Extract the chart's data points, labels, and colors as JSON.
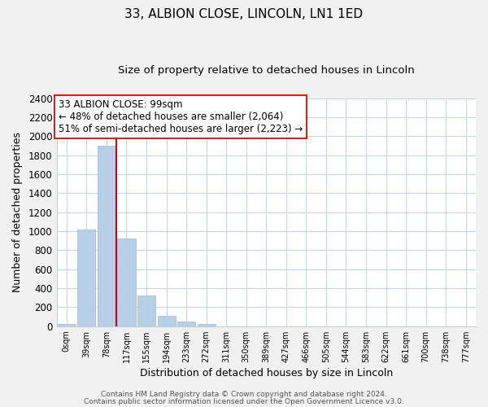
{
  "title": "33, ALBION CLOSE, LINCOLN, LN1 1ED",
  "subtitle": "Size of property relative to detached houses in Lincoln",
  "xlabel": "Distribution of detached houses by size in Lincoln",
  "ylabel": "Number of detached properties",
  "bar_labels": [
    "0sqm",
    "39sqm",
    "78sqm",
    "117sqm",
    "155sqm",
    "194sqm",
    "233sqm",
    "272sqm",
    "311sqm",
    "350sqm",
    "389sqm",
    "427sqm",
    "466sqm",
    "505sqm",
    "544sqm",
    "583sqm",
    "622sqm",
    "661sqm",
    "700sqm",
    "738sqm",
    "777sqm"
  ],
  "bar_values": [
    20,
    1020,
    1900,
    920,
    320,
    105,
    50,
    20,
    0,
    0,
    0,
    0,
    0,
    0,
    0,
    0,
    0,
    0,
    0,
    0,
    0
  ],
  "bar_color": "#b8cfe8",
  "bar_edge_color": "#a0b8d8",
  "vline_x": 2.5,
  "vline_color": "#cc0000",
  "ylim": [
    0,
    2400
  ],
  "yticks": [
    0,
    200,
    400,
    600,
    800,
    1000,
    1200,
    1400,
    1600,
    1800,
    2000,
    2200,
    2400
  ],
  "annotation_title": "33 ALBION CLOSE: 99sqm",
  "annotation_line1": "← 48% of detached houses are smaller (2,064)",
  "annotation_line2": "51% of semi-detached houses are larger (2,223) →",
  "footer1": "Contains HM Land Registry data © Crown copyright and database right 2024.",
  "footer2": "Contains public sector information licensed under the Open Government Licence v3.0.",
  "bg_color": "#f0f0f0",
  "plot_bg_color": "#ffffff",
  "grid_color": "#c8d4e8"
}
